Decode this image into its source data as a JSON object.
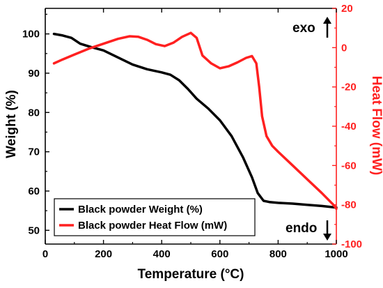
{
  "chart_data": {
    "type": "line",
    "xlabel": "Temperature (°C)",
    "ylabel": "Weight (%)",
    "y2label": "Heat Flow (mW)",
    "xlim": [
      0,
      1000
    ],
    "ylim": [
      46.5,
      106.5
    ],
    "y2lim": [
      -100,
      20
    ],
    "xticks": [
      0,
      200,
      400,
      600,
      800,
      1000
    ],
    "yticks": [
      50,
      60,
      70,
      80,
      90,
      100
    ],
    "y2ticks": [
      -100,
      -80,
      -60,
      -40,
      -20,
      0,
      20
    ],
    "legend_position": "bottom-left",
    "grid": false,
    "annotations": [
      {
        "text": "exo",
        "direction": "up"
      },
      {
        "text": "endo",
        "direction": "down"
      }
    ],
    "series": [
      {
        "name": "Black powder Weight (%)",
        "axis": "left",
        "color": "#000000",
        "x": [
          30,
          60,
          90,
          120,
          160,
          200,
          250,
          300,
          350,
          400,
          430,
          460,
          490,
          520,
          560,
          600,
          640,
          680,
          710,
          730,
          750,
          770,
          800,
          850,
          900,
          950,
          1000
        ],
        "y": [
          100,
          99.6,
          99,
          97.5,
          96.6,
          95.8,
          94,
          92.2,
          91,
          90.2,
          89.6,
          88.2,
          86,
          83.5,
          81,
          78,
          74,
          68.5,
          63.5,
          59.5,
          57.5,
          57.2,
          57,
          56.8,
          56.5,
          56.2,
          55.8
        ]
      },
      {
        "name": "Black powder Heat Flow (mW)",
        "axis": "right",
        "color": "#ff2020",
        "x": [
          30,
          60,
          100,
          150,
          200,
          250,
          290,
          320,
          350,
          380,
          410,
          440,
          470,
          500,
          520,
          540,
          570,
          600,
          630,
          660,
          690,
          710,
          725,
          735,
          745,
          760,
          780,
          800,
          850,
          900,
          950,
          990,
          1000
        ],
        "y": [
          -8,
          -6,
          -3.5,
          -0.5,
          2,
          4.5,
          5.8,
          5.5,
          4,
          1.8,
          0.8,
          2.5,
          5.5,
          7.5,
          5,
          -4,
          -8,
          -10.5,
          -9.5,
          -7.5,
          -5.2,
          -4.3,
          -8,
          -20,
          -35,
          -45,
          -50,
          -53,
          -60,
          -67,
          -74,
          -80,
          -82
        ]
      }
    ]
  }
}
